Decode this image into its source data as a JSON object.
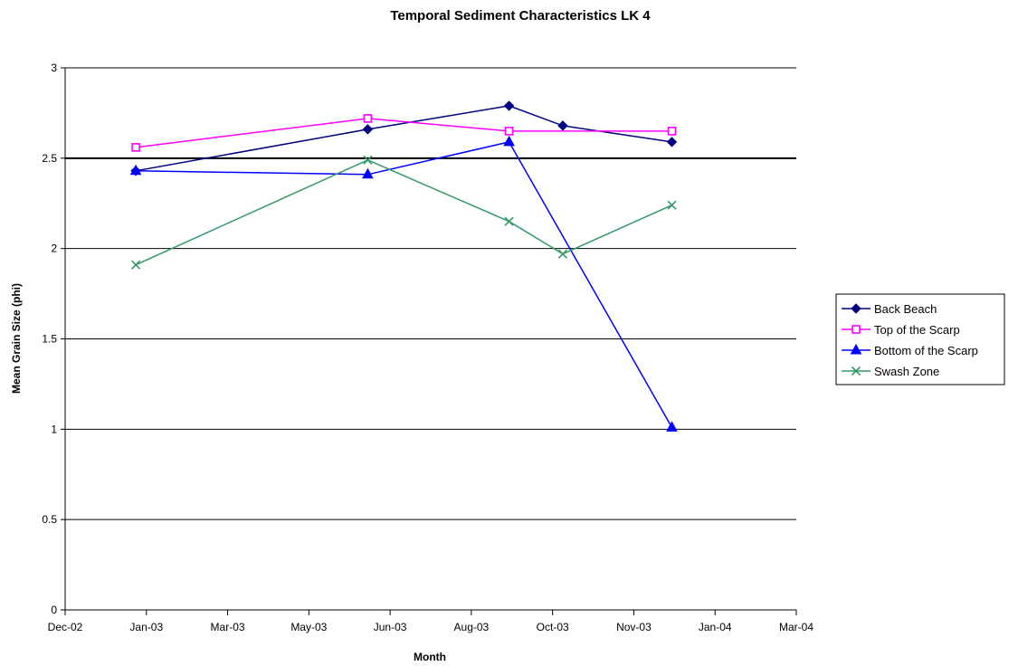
{
  "chart_data": {
    "type": "line",
    "title": "Temporal Sediment Characteristics LK 4",
    "xlabel": "Month",
    "ylabel": "Mean Grain Size (phi)",
    "x_tick_labels": [
      "Dec-02",
      "Jan-03",
      "Mar-03",
      "May-03",
      "Jun-03",
      "Aug-03",
      "Oct-03",
      "Nov-03",
      "Jan-04",
      "Mar-04"
    ],
    "xlim": [
      "2002-11-20",
      "2004-03-10"
    ],
    "ylim": [
      0,
      3
    ],
    "y_ticks": [
      0,
      0.5,
      1,
      1.5,
      2,
      2.5,
      3
    ],
    "y_tick_labels": [
      "0",
      "0.5",
      "1",
      "1.5",
      "2",
      "2.5",
      "3"
    ],
    "highlight_y": 2.5,
    "grid": "horizontal",
    "legend_position": "right",
    "series": [
      {
        "name": "Back Beach",
        "color": "#000080",
        "marker": "diamond",
        "x": [
          "2003-01-05",
          "2003-06-05",
          "2003-09-05",
          "2003-10-10",
          "2003-12-20"
        ],
        "y": [
          2.43,
          2.66,
          2.79,
          2.68,
          2.59
        ]
      },
      {
        "name": "Top of the Scarp",
        "color": "#ff00ff",
        "marker": "square",
        "x": [
          "2003-01-05",
          "2003-06-05",
          "2003-09-05",
          "2003-12-20"
        ],
        "y": [
          2.56,
          2.72,
          2.65,
          2.65
        ]
      },
      {
        "name": "Bottom of the Scarp",
        "color": "#0000ff",
        "marker": "triangle",
        "x": [
          "2003-01-05",
          "2003-06-05",
          "2003-09-05",
          "2003-12-20"
        ],
        "y": [
          2.43,
          2.41,
          2.59,
          1.01
        ]
      },
      {
        "name": "Swash Zone",
        "color": "#339966",
        "marker": "x",
        "x": [
          "2003-01-05",
          "2003-06-05",
          "2003-09-05",
          "2003-10-10",
          "2003-12-20"
        ],
        "y": [
          1.91,
          2.49,
          2.15,
          1.97,
          2.24
        ]
      }
    ]
  }
}
